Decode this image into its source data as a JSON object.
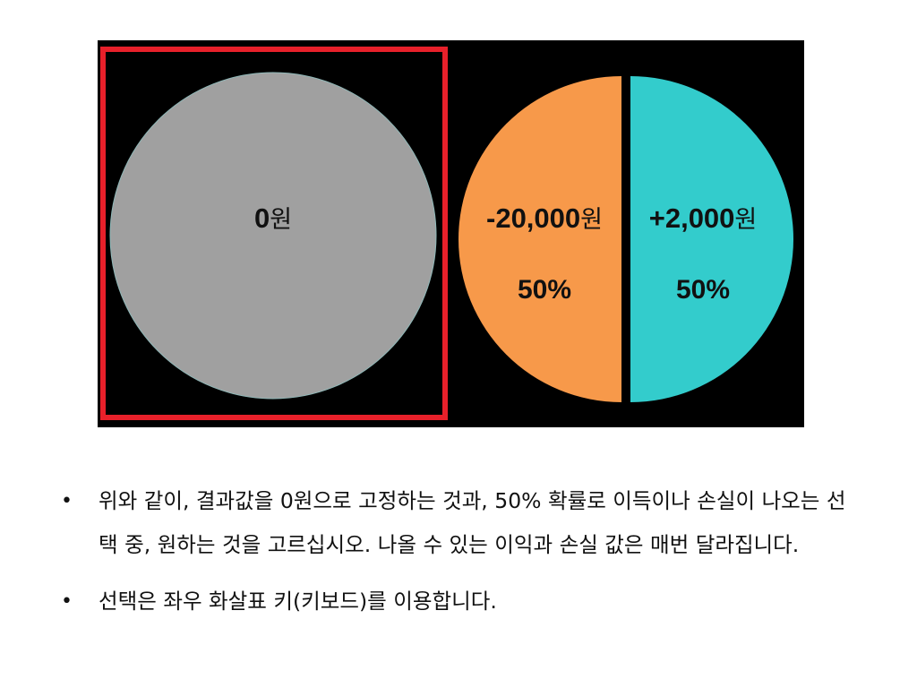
{
  "options": {
    "sure": {
      "amount_number": "0",
      "amount_unit": "원",
      "color": "#a0a0a0",
      "selected": true,
      "selection_color": "#e8202a"
    },
    "gamble": {
      "loss": {
        "amount_number": "-20,000",
        "amount_unit": "원",
        "probability": "50%",
        "color": "#f7994a"
      },
      "gain": {
        "amount_number": "+2,000",
        "amount_unit": "원",
        "probability": "50%",
        "color": "#33cccc"
      }
    }
  },
  "instructions": {
    "bullet": "•",
    "line1": "위와 같이, 결과값을 0원으로 고정하는 것과, 50% 확률로 이득이나 손실이 나오는 선택 중, 원하는 것을 고르십시오. 나올 수 있는 이익과 손실 값은 매번 달라집니다.",
    "line2": "선택은 좌우 화살표 키(키보드)를 이용합니다."
  }
}
